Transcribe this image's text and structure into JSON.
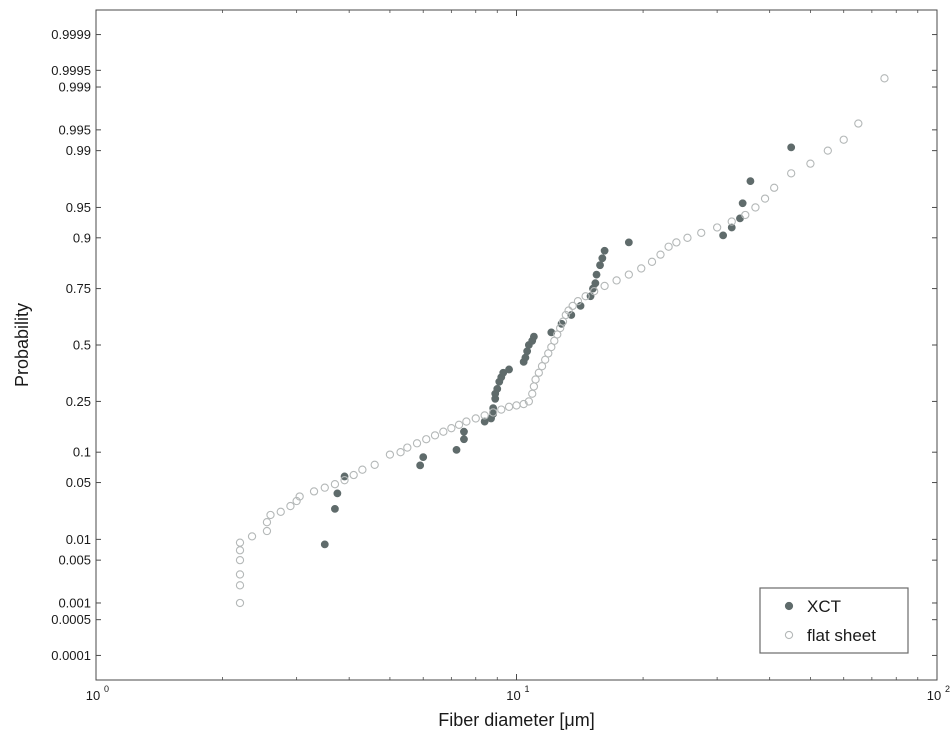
{
  "chart_data": {
    "type": "scatter",
    "title": "",
    "xlabel": "Fiber diameter [μm]",
    "ylabel": "Probability",
    "x_scale": "log10",
    "y_scale": "normal-probability",
    "xlim": [
      1,
      100
    ],
    "ylim": [
      3e-05,
      0.99997
    ],
    "x_ticks": [
      {
        "value": 1,
        "base": "10",
        "exp": "0"
      },
      {
        "value": 10,
        "base": "10",
        "exp": "1"
      },
      {
        "value": 100,
        "base": "10",
        "exp": "2"
      }
    ],
    "y_ticks": [
      {
        "value": 0.0001,
        "label": "0.0001"
      },
      {
        "value": 0.0005,
        "label": "0.0005"
      },
      {
        "value": 0.001,
        "label": "0.001"
      },
      {
        "value": 0.005,
        "label": "0.005"
      },
      {
        "value": 0.01,
        "label": "0.01"
      },
      {
        "value": 0.05,
        "label": "0.05"
      },
      {
        "value": 0.1,
        "label": "0.1"
      },
      {
        "value": 0.25,
        "label": "0.25"
      },
      {
        "value": 0.5,
        "label": "0.5"
      },
      {
        "value": 0.75,
        "label": "0.75"
      },
      {
        "value": 0.9,
        "label": "0.9"
      },
      {
        "value": 0.95,
        "label": "0.95"
      },
      {
        "value": 0.99,
        "label": "0.99"
      },
      {
        "value": 0.995,
        "label": "0.995"
      },
      {
        "value": 0.999,
        "label": "0.999"
      },
      {
        "value": 0.9995,
        "label": "0.9995"
      },
      {
        "value": 0.9999,
        "label": "0.9999"
      }
    ],
    "grid": false,
    "legend_position": "bottom-right",
    "series": [
      {
        "name": "XCT",
        "marker": "filled-circle",
        "color": "#5f6b6b",
        "points": [
          [
            3.5,
            0.0085
          ],
          [
            3.7,
            0.025
          ],
          [
            3.75,
            0.038
          ],
          [
            3.9,
            0.058
          ],
          [
            5.9,
            0.075
          ],
          [
            6.0,
            0.09
          ],
          [
            7.2,
            0.105
          ],
          [
            7.5,
            0.13
          ],
          [
            7.5,
            0.15
          ],
          [
            8.4,
            0.18
          ],
          [
            8.7,
            0.19
          ],
          [
            8.8,
            0.205
          ],
          [
            8.8,
            0.225
          ],
          [
            8.9,
            0.26
          ],
          [
            8.9,
            0.28
          ],
          [
            9.0,
            0.3
          ],
          [
            9.1,
            0.33
          ],
          [
            9.2,
            0.35
          ],
          [
            9.3,
            0.37
          ],
          [
            9.6,
            0.385
          ],
          [
            10.4,
            0.42
          ],
          [
            10.5,
            0.44
          ],
          [
            10.6,
            0.47
          ],
          [
            10.7,
            0.5
          ],
          [
            10.9,
            0.52
          ],
          [
            11.0,
            0.54
          ],
          [
            12.1,
            0.56
          ],
          [
            12.8,
            0.6
          ],
          [
            13.5,
            0.64
          ],
          [
            14.2,
            0.68
          ],
          [
            15.0,
            0.72
          ],
          [
            15.2,
            0.75
          ],
          [
            15.4,
            0.77
          ],
          [
            15.5,
            0.8
          ],
          [
            15.8,
            0.83
          ],
          [
            16.0,
            0.85
          ],
          [
            16.2,
            0.87
          ],
          [
            18.5,
            0.89
          ],
          [
            31.0,
            0.905
          ],
          [
            32.5,
            0.92
          ],
          [
            34.0,
            0.935
          ],
          [
            34.5,
            0.955
          ],
          [
            36.0,
            0.975
          ],
          [
            45.0,
            0.991
          ]
        ]
      },
      {
        "name": "flat sheet",
        "marker": "open-circle",
        "color": "#b4b8b8",
        "points": [
          [
            2.2,
            0.001
          ],
          [
            2.2,
            0.002
          ],
          [
            2.2,
            0.003
          ],
          [
            2.2,
            0.005
          ],
          [
            2.2,
            0.007
          ],
          [
            2.2,
            0.009
          ],
          [
            2.35,
            0.011
          ],
          [
            2.55,
            0.013
          ],
          [
            2.55,
            0.017
          ],
          [
            2.6,
            0.021
          ],
          [
            2.75,
            0.023
          ],
          [
            2.9,
            0.027
          ],
          [
            3.0,
            0.031
          ],
          [
            3.05,
            0.035
          ],
          [
            3.3,
            0.04
          ],
          [
            3.5,
            0.044
          ],
          [
            3.7,
            0.048
          ],
          [
            3.9,
            0.053
          ],
          [
            4.1,
            0.06
          ],
          [
            4.3,
            0.068
          ],
          [
            4.6,
            0.076
          ],
          [
            5.0,
            0.095
          ],
          [
            5.3,
            0.1
          ],
          [
            5.5,
            0.11
          ],
          [
            5.8,
            0.12
          ],
          [
            6.1,
            0.13
          ],
          [
            6.4,
            0.14
          ],
          [
            6.7,
            0.15
          ],
          [
            7.0,
            0.16
          ],
          [
            7.3,
            0.17
          ],
          [
            7.6,
            0.18
          ],
          [
            8.0,
            0.19
          ],
          [
            8.4,
            0.2
          ],
          [
            8.8,
            0.21
          ],
          [
            9.2,
            0.22
          ],
          [
            9.6,
            0.23
          ],
          [
            10.0,
            0.235
          ],
          [
            10.4,
            0.24
          ],
          [
            10.7,
            0.25
          ],
          [
            10.9,
            0.28
          ],
          [
            11.0,
            0.31
          ],
          [
            11.1,
            0.34
          ],
          [
            11.3,
            0.37
          ],
          [
            11.5,
            0.4
          ],
          [
            11.7,
            0.43
          ],
          [
            11.9,
            0.46
          ],
          [
            12.1,
            0.49
          ],
          [
            12.3,
            0.52
          ],
          [
            12.5,
            0.55
          ],
          [
            12.7,
            0.58
          ],
          [
            12.9,
            0.61
          ],
          [
            13.1,
            0.64
          ],
          [
            13.3,
            0.66
          ],
          [
            13.6,
            0.68
          ],
          [
            14.0,
            0.7
          ],
          [
            14.6,
            0.72
          ],
          [
            15.3,
            0.74
          ],
          [
            16.2,
            0.76
          ],
          [
            17.3,
            0.78
          ],
          [
            18.5,
            0.8
          ],
          [
            19.8,
            0.82
          ],
          [
            21.0,
            0.84
          ],
          [
            22.0,
            0.86
          ],
          [
            23.0,
            0.88
          ],
          [
            24.0,
            0.89
          ],
          [
            25.5,
            0.9
          ],
          [
            27.5,
            0.91
          ],
          [
            30.0,
            0.92
          ],
          [
            32.5,
            0.93
          ],
          [
            35.0,
            0.94
          ],
          [
            37.0,
            0.95
          ],
          [
            39.0,
            0.96
          ],
          [
            41.0,
            0.97
          ],
          [
            45.0,
            0.98
          ],
          [
            50.0,
            0.985
          ],
          [
            55.0,
            0.99
          ],
          [
            60.0,
            0.993
          ],
          [
            65.0,
            0.996
          ],
          [
            75.0,
            0.9993
          ]
        ]
      }
    ]
  }
}
